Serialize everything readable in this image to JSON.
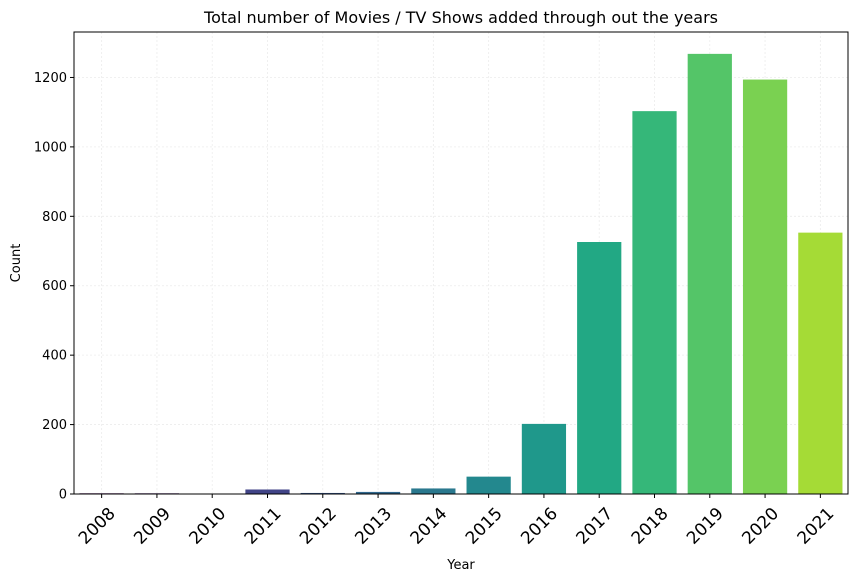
{
  "chart_data": {
    "type": "bar",
    "title": "Total number of Movies / TV Shows added through out the years",
    "xlabel": "Year",
    "ylabel": "Count",
    "categories": [
      "2008",
      "2009",
      "2010",
      "2011",
      "2012",
      "2013",
      "2014",
      "2015",
      "2016",
      "2017",
      "2018",
      "2019",
      "2020",
      "2021"
    ],
    "values": [
      2,
      2,
      1,
      13,
      3,
      6,
      16,
      50,
      202,
      726,
      1103,
      1268,
      1194,
      753
    ],
    "ylim": [
      0,
      1331
    ],
    "yticks": [
      0,
      200,
      400,
      600,
      800,
      1000,
      1200
    ],
    "grid": true,
    "colors": [
      "#440154",
      "#481a6c",
      "#472f7d",
      "#414487",
      "#39568c",
      "#31688e",
      "#2a788e",
      "#23888e",
      "#1f988b",
      "#22a884",
      "#35b779",
      "#54c568",
      "#7ad151",
      "#a5db36"
    ],
    "legend": "none"
  }
}
